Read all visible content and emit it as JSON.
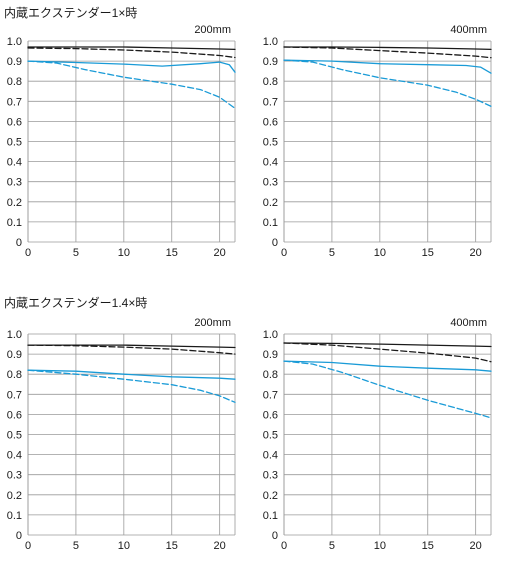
{
  "sections": [
    {
      "title": "内蔵エクステンダー1×時"
    },
    {
      "title": "内蔵エクステンダー1.4×時"
    }
  ],
  "colors": {
    "black": "#1a1a1a",
    "blue": "#1a9bd7",
    "dashed_black": "#1a1a1a",
    "grid": "#9a9a9a"
  },
  "chart_data": [
    {
      "type": "line",
      "section": "内蔵エクステンダー1×時",
      "label": "200mm",
      "xlim": [
        0,
        21.6
      ],
      "ylim": [
        0,
        1.0
      ],
      "x_ticks": [
        "0",
        "5",
        "10",
        "15",
        "20"
      ],
      "y_ticks": [
        "0",
        "0.1",
        "0.2",
        "0.3",
        "0.4",
        "0.5",
        "0.6",
        "0.7",
        "0.8",
        "0.9",
        "1.0"
      ],
      "series": [
        {
          "style": "solid",
          "color": "black",
          "points": [
            [
              0,
              0.97
            ],
            [
              5,
              0.97
            ],
            [
              10,
              0.97
            ],
            [
              15,
              0.965
            ],
            [
              20,
              0.96
            ],
            [
              21.6,
              0.958
            ]
          ]
        },
        {
          "style": "dashed",
          "color": "black",
          "points": [
            [
              0,
              0.965
            ],
            [
              5,
              0.962
            ],
            [
              10,
              0.955
            ],
            [
              15,
              0.945
            ],
            [
              20,
              0.928
            ],
            [
              21.6,
              0.918
            ]
          ]
        },
        {
          "style": "solid",
          "color": "blue",
          "points": [
            [
              0,
              0.9
            ],
            [
              5,
              0.893
            ],
            [
              10,
              0.885
            ],
            [
              14,
              0.875
            ],
            [
              18,
              0.887
            ],
            [
              20,
              0.895
            ],
            [
              21,
              0.882
            ],
            [
              21.6,
              0.845
            ]
          ]
        },
        {
          "style": "dashed",
          "color": "blue",
          "points": [
            [
              0,
              0.9
            ],
            [
              3,
              0.89
            ],
            [
              6,
              0.857
            ],
            [
              10,
              0.82
            ],
            [
              15,
              0.785
            ],
            [
              18,
              0.758
            ],
            [
              20,
              0.72
            ],
            [
              21.6,
              0.665
            ]
          ]
        }
      ]
    },
    {
      "type": "line",
      "section": "内蔵エクステンダー1×時",
      "label": "400mm",
      "xlim": [
        0,
        21.6
      ],
      "ylim": [
        0,
        1.0
      ],
      "x_ticks": [
        "0",
        "5",
        "10",
        "15",
        "20"
      ],
      "y_ticks": [
        "0",
        "0.1",
        "0.2",
        "0.3",
        "0.4",
        "0.5",
        "0.6",
        "0.7",
        "0.8",
        "0.9",
        "1.0"
      ],
      "series": [
        {
          "style": "solid",
          "color": "black",
          "points": [
            [
              0,
              0.97
            ],
            [
              5,
              0.97
            ],
            [
              10,
              0.968
            ],
            [
              15,
              0.965
            ],
            [
              20,
              0.96
            ],
            [
              21.6,
              0.958
            ]
          ]
        },
        {
          "style": "dashed",
          "color": "black",
          "points": [
            [
              0,
              0.97
            ],
            [
              5,
              0.965
            ],
            [
              10,
              0.952
            ],
            [
              15,
              0.94
            ],
            [
              20,
              0.925
            ],
            [
              21.6,
              0.917
            ]
          ]
        },
        {
          "style": "solid",
          "color": "blue",
          "points": [
            [
              0,
              0.905
            ],
            [
              5,
              0.9
            ],
            [
              10,
              0.887
            ],
            [
              15,
              0.882
            ],
            [
              19,
              0.878
            ],
            [
              20.5,
              0.87
            ],
            [
              21.6,
              0.84
            ]
          ]
        },
        {
          "style": "dashed",
          "color": "blue",
          "points": [
            [
              0,
              0.905
            ],
            [
              3,
              0.895
            ],
            [
              6,
              0.858
            ],
            [
              10,
              0.817
            ],
            [
              15,
              0.78
            ],
            [
              18,
              0.745
            ],
            [
              20,
              0.71
            ],
            [
              21.6,
              0.675
            ]
          ]
        }
      ]
    },
    {
      "type": "line",
      "section": "内蔵エクステンダー1.4×時",
      "label": "200mm",
      "xlim": [
        0,
        21.6
      ],
      "ylim": [
        0,
        1.0
      ],
      "x_ticks": [
        "0",
        "5",
        "10",
        "15",
        "20"
      ],
      "y_ticks": [
        "0",
        "0.1",
        "0.2",
        "0.3",
        "0.4",
        "0.5",
        "0.6",
        "0.7",
        "0.8",
        "0.9",
        "1.0"
      ],
      "series": [
        {
          "style": "solid",
          "color": "black",
          "points": [
            [
              0,
              0.945
            ],
            [
              5,
              0.945
            ],
            [
              10,
              0.945
            ],
            [
              15,
              0.94
            ],
            [
              20,
              0.935
            ],
            [
              21.6,
              0.933
            ]
          ]
        },
        {
          "style": "dashed",
          "color": "black",
          "points": [
            [
              0,
              0.945
            ],
            [
              5,
              0.942
            ],
            [
              10,
              0.935
            ],
            [
              15,
              0.925
            ],
            [
              20,
              0.907
            ],
            [
              21.6,
              0.9
            ]
          ]
        },
        {
          "style": "solid",
          "color": "blue",
          "points": [
            [
              0,
              0.82
            ],
            [
              5,
              0.815
            ],
            [
              10,
              0.8
            ],
            [
              15,
              0.787
            ],
            [
              20,
              0.78
            ],
            [
              21.6,
              0.775
            ]
          ]
        },
        {
          "style": "dashed",
          "color": "blue",
          "points": [
            [
              0,
              0.82
            ],
            [
              5,
              0.8
            ],
            [
              10,
              0.775
            ],
            [
              15,
              0.748
            ],
            [
              18,
              0.72
            ],
            [
              20,
              0.692
            ],
            [
              21.6,
              0.66
            ]
          ]
        }
      ]
    },
    {
      "type": "line",
      "section": "内蔵エクステンダー1.4×時",
      "label": "400mm",
      "xlim": [
        0,
        21.6
      ],
      "ylim": [
        0,
        1.0
      ],
      "x_ticks": [
        "0",
        "5",
        "10",
        "15",
        "20"
      ],
      "y_ticks": [
        "0",
        "0.1",
        "0.2",
        "0.3",
        "0.4",
        "0.5",
        "0.6",
        "0.7",
        "0.8",
        "0.9",
        "1.0"
      ],
      "series": [
        {
          "style": "solid",
          "color": "black",
          "points": [
            [
              0,
              0.955
            ],
            [
              5,
              0.953
            ],
            [
              10,
              0.95
            ],
            [
              15,
              0.945
            ],
            [
              20,
              0.94
            ],
            [
              21.6,
              0.938
            ]
          ]
        },
        {
          "style": "dashed",
          "color": "black",
          "points": [
            [
              0,
              0.955
            ],
            [
              5,
              0.945
            ],
            [
              10,
              0.925
            ],
            [
              15,
              0.905
            ],
            [
              20,
              0.88
            ],
            [
              21.6,
              0.862
            ]
          ]
        },
        {
          "style": "solid",
          "color": "blue",
          "points": [
            [
              0,
              0.865
            ],
            [
              5,
              0.858
            ],
            [
              10,
              0.84
            ],
            [
              15,
              0.83
            ],
            [
              20,
              0.822
            ],
            [
              21.6,
              0.815
            ]
          ]
        },
        {
          "style": "dashed",
          "color": "blue",
          "points": [
            [
              0,
              0.865
            ],
            [
              3,
              0.85
            ],
            [
              6,
              0.81
            ],
            [
              10,
              0.745
            ],
            [
              15,
              0.67
            ],
            [
              20,
              0.605
            ],
            [
              21.6,
              0.583
            ]
          ]
        }
      ]
    }
  ]
}
